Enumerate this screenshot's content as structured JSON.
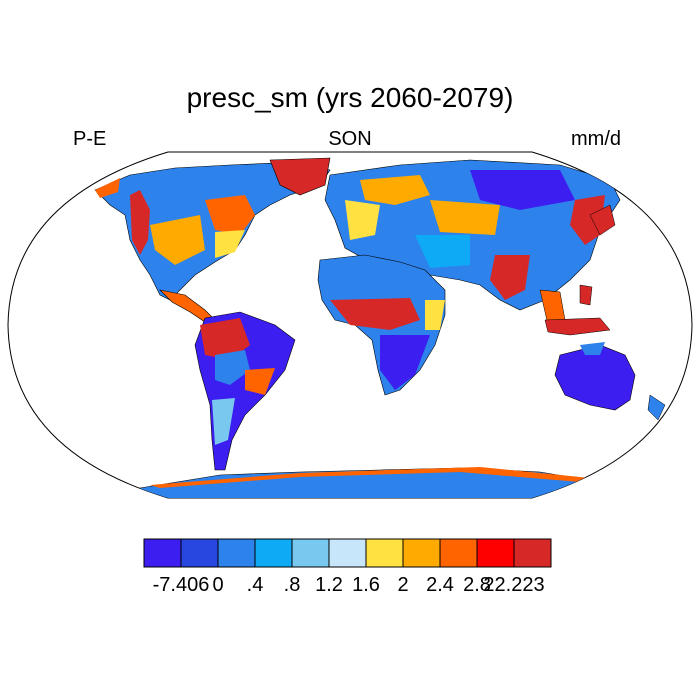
{
  "title": "presc_sm (yrs 2060-2079)",
  "left_string": "P-E",
  "center_string": "SON",
  "right_string": "mm/d",
  "colorbar": {
    "colors": [
      "#3c1ef0",
      "#2846e0",
      "#2d82eb",
      "#0faaf5",
      "#78c8f0",
      "#c8e6fa",
      "#ffe141",
      "#ffaa00",
      "#ff6400",
      "#ff0000",
      "#d72828"
    ],
    "labels": [
      "-7.406",
      "0",
      ".4",
      ".8",
      "1.2",
      "1.6",
      "2",
      "2.4",
      "2.8",
      "22.223"
    ]
  }
}
